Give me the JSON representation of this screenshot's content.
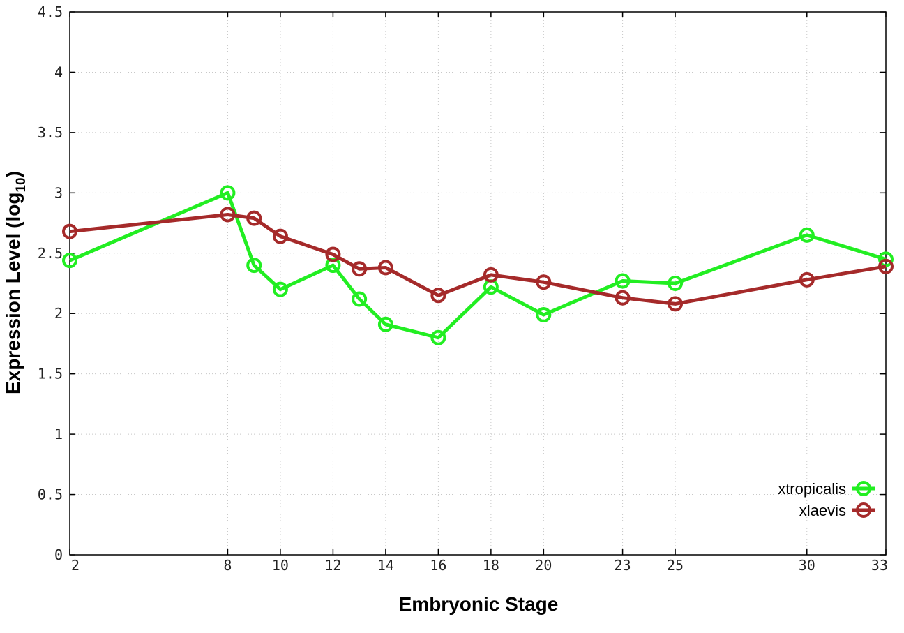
{
  "chart_data": {
    "type": "line",
    "xlabel": "Embryonic Stage",
    "ylabel": "Expression Level (log",
    "ylabel_sub": "10",
    "ylabel_close": ")",
    "x_ticks": [
      "2",
      "8",
      "10",
      "12",
      "14",
      "16",
      "18",
      "20",
      "23",
      "25",
      "30",
      "33"
    ],
    "y_ticks": [
      "0",
      "0.5",
      "1",
      "1.5",
      "2",
      "2.5",
      "3",
      "3.5",
      "4",
      "4.5"
    ],
    "ylim": [
      0,
      4.5
    ],
    "grid": true,
    "legend_position": "bottom-right",
    "series": [
      {
        "name": "xtropicalis",
        "color": "#22ee22",
        "points": [
          {
            "x": "2",
            "y": 2.44
          },
          {
            "x": "8",
            "y": 3.0
          },
          {
            "x": "9",
            "y": 2.4
          },
          {
            "x": "10",
            "y": 2.2
          },
          {
            "x": "12",
            "y": 2.4
          },
          {
            "x": "13",
            "y": 2.12
          },
          {
            "x": "14",
            "y": 1.91
          },
          {
            "x": "16",
            "y": 1.8
          },
          {
            "x": "18",
            "y": 2.22
          },
          {
            "x": "20",
            "y": 1.99
          },
          {
            "x": "23",
            "y": 2.27
          },
          {
            "x": "25",
            "y": 2.25
          },
          {
            "x": "30",
            "y": 2.65
          },
          {
            "x": "33",
            "y": 2.45
          }
        ]
      },
      {
        "name": "xlaevis",
        "color": "#a52a2a",
        "points": [
          {
            "x": "2",
            "y": 2.68
          },
          {
            "x": "8",
            "y": 2.82
          },
          {
            "x": "9",
            "y": 2.79
          },
          {
            "x": "10",
            "y": 2.64
          },
          {
            "x": "12",
            "y": 2.49
          },
          {
            "x": "13",
            "y": 2.37
          },
          {
            "x": "14",
            "y": 2.38
          },
          {
            "x": "16",
            "y": 2.15
          },
          {
            "x": "18",
            "y": 2.32
          },
          {
            "x": "20",
            "y": 2.26
          },
          {
            "x": "23",
            "y": 2.13
          },
          {
            "x": "25",
            "y": 2.08
          },
          {
            "x": "30",
            "y": 2.28
          },
          {
            "x": "33",
            "y": 2.39
          }
        ]
      }
    ]
  }
}
